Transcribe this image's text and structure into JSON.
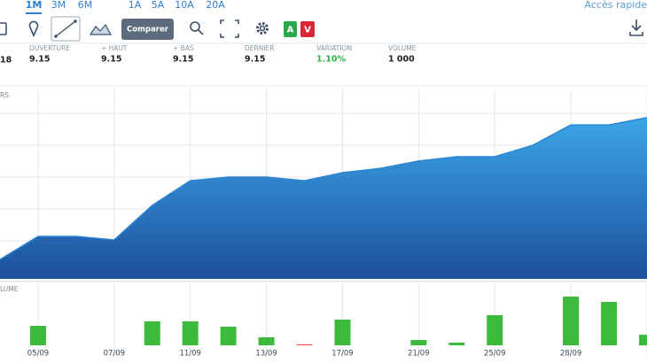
{
  "toolbar": {
    "periods": [
      "1M",
      "3M",
      "6M",
      "1A",
      "5A",
      "10A",
      "20A"
    ],
    "quick_access": "Accès rapide",
    "compare": "Comparer",
    "buy": "A",
    "sell": "V"
  },
  "stats": {
    "cut_value": "18",
    "items": [
      {
        "label": "OUVERTURE",
        "value": "9.15"
      },
      {
        "label": "+ HAUT",
        "value": "9.15"
      },
      {
        "label": "+ BAS",
        "value": "9.15"
      },
      {
        "label": "DERNIER",
        "value": "9.15"
      },
      {
        "label": "VARIATION",
        "value": "1.10%"
      },
      {
        "label": "VOLUME",
        "value": "1 000"
      }
    ]
  },
  "chart_data": [
    {
      "type": "area",
      "label": "RS",
      "color": "#2a86d6",
      "values": [
        10.2,
        22.3,
        22.3,
        20.5,
        38.6,
        51.6,
        53.5,
        53.5,
        51.6,
        55.8,
        58.1,
        61.9,
        64.2,
        64.2,
        70.2,
        80.9,
        80.9,
        84.7
      ],
      "ylim": [
        0,
        100
      ]
    },
    {
      "type": "bar",
      "label": "LUME",
      "categories": [
        null,
        "05/09",
        null,
        "07/09",
        null,
        "11/09",
        null,
        "13/09",
        null,
        "17/09",
        null,
        "21/09",
        null,
        "25/09",
        null,
        "28/09",
        null,
        null
      ],
      "values": [
        0,
        31.4,
        0,
        0,
        38.6,
        38.6,
        30,
        12.9,
        1.4,
        41.4,
        0,
        8.6,
        4.3,
        48.6,
        0,
        78.6,
        70,
        17
      ],
      "colors": [
        "#3cba3c",
        "#3cba3c",
        "#3cba3c",
        "#3cba3c",
        "#3cba3c",
        "#3cba3c",
        "#3cba3c",
        "#3cba3c",
        "#e04848",
        "#3cba3c",
        "#3cba3c",
        "#3cba3c",
        "#3cba3c",
        "#3cba3c",
        "#3cba3c",
        "#3cba3c",
        "#3cba3c",
        "#3cba3c"
      ],
      "ylim": [
        0,
        100
      ]
    }
  ]
}
